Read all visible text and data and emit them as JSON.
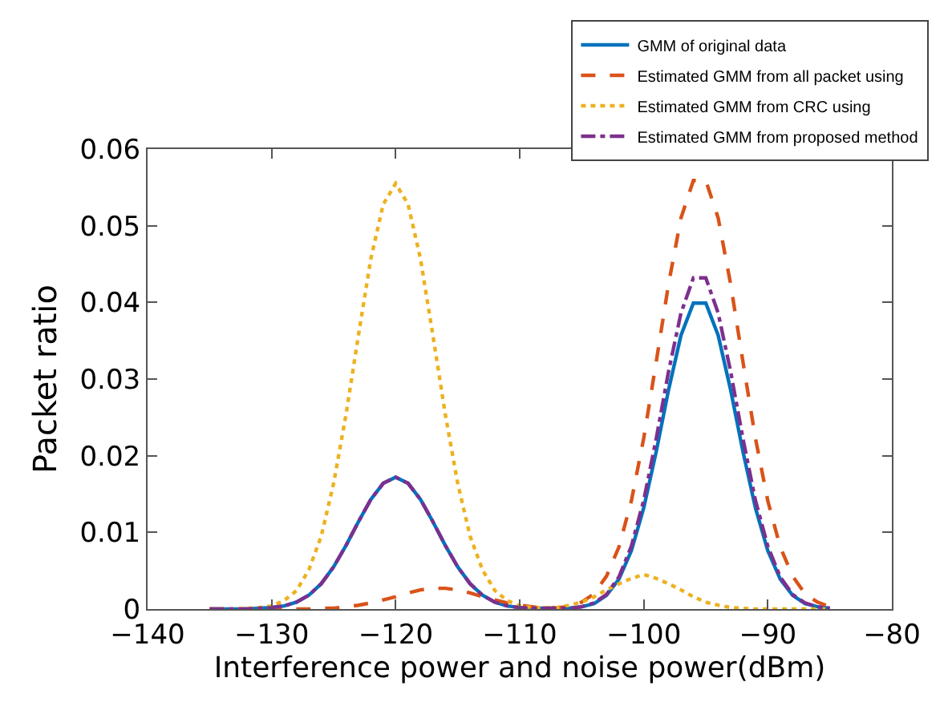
{
  "chart_data": {
    "type": "line",
    "xlabel": "Interference power and noise power(dBm)",
    "ylabel": "Packet ratio",
    "x": [
      -135,
      -134,
      -133,
      -132,
      -131,
      -130,
      -129,
      -128,
      -127,
      -126,
      -125,
      -124,
      -123,
      -122,
      -121,
      -120,
      -119,
      -118,
      -117,
      -116,
      -115,
      -114,
      -113,
      -112,
      -111,
      -110,
      -109,
      -108,
      -107,
      -106,
      -105,
      -104,
      -103,
      -102,
      -101,
      -100,
      -99,
      -98,
      -97,
      -96,
      -95,
      -94,
      -93,
      -92,
      -91,
      -90,
      -89,
      -88,
      -87,
      -86,
      -85
    ],
    "series": [
      {
        "name": "GMM of original data",
        "color": "#0072bd",
        "line_style": "solid",
        "values": [
          0,
          0,
          0,
          0,
          0.0001,
          0.0002,
          0.0004,
          0.0009,
          0.0018,
          0.0033,
          0.0055,
          0.0083,
          0.0114,
          0.0143,
          0.0164,
          0.0172,
          0.0164,
          0.0143,
          0.0114,
          0.0083,
          0.0055,
          0.0033,
          0.0018,
          0.0009,
          0.0004,
          0.0002,
          0.0001,
          0.0001,
          0.0001,
          0.0001,
          0.0003,
          0.0007,
          0.0018,
          0.0039,
          0.0076,
          0.0132,
          0.0205,
          0.0286,
          0.0357,
          0.0399,
          0.0399,
          0.0357,
          0.0286,
          0.0205,
          0.0132,
          0.0076,
          0.0039,
          0.0018,
          0.0007,
          0.0003,
          0.0001
        ]
      },
      {
        "name": "Estimated GMM from all packet using",
        "color": "#d95319",
        "line_style": "dashed",
        "values": [
          0,
          0,
          0,
          0,
          0,
          0,
          0,
          0,
          0,
          0.0001,
          0.0001,
          0.0003,
          0.0005,
          0.0008,
          0.0012,
          0.0016,
          0.0021,
          0.0025,
          0.0027,
          0.0027,
          0.0025,
          0.0021,
          0.0016,
          0.0012,
          0.0008,
          0.0005,
          0.0003,
          0.0001,
          0.0002,
          0.0003,
          0.0009,
          0.002,
          0.0043,
          0.0081,
          0.0141,
          0.0223,
          0.0322,
          0.0424,
          0.051,
          0.0559,
          0.0559,
          0.051,
          0.0424,
          0.0322,
          0.0223,
          0.0141,
          0.0081,
          0.0043,
          0.002,
          0.0009,
          0.0003
        ]
      },
      {
        "name": "Estimated GMM from CRC using",
        "color": "#edb120",
        "line_style": "dotted",
        "values": [
          0,
          0,
          0,
          0.0001,
          0.0002,
          0.0004,
          0.0011,
          0.0024,
          0.0051,
          0.0095,
          0.0164,
          0.0254,
          0.0357,
          0.0457,
          0.0528,
          0.0555,
          0.0528,
          0.0457,
          0.0357,
          0.0254,
          0.0164,
          0.0095,
          0.0051,
          0.0024,
          0.0011,
          0.0004,
          0.0002,
          0.0002,
          0.0002,
          0.0005,
          0.0009,
          0.0016,
          0.0025,
          0.0033,
          0.004,
          0.0045,
          0.004,
          0.0033,
          0.0025,
          0.0016,
          0.0009,
          0.0005,
          0.0002,
          0.0001,
          0,
          0,
          0,
          0,
          0,
          0,
          0
        ]
      },
      {
        "name": "Estimated GMM from proposed method",
        "color": "#7e2f8e",
        "line_style": "dashdot",
        "values": [
          0,
          0,
          0,
          0,
          0.0001,
          0.0002,
          0.0004,
          0.0009,
          0.0018,
          0.0033,
          0.0055,
          0.0083,
          0.0114,
          0.0143,
          0.0164,
          0.0172,
          0.0164,
          0.0143,
          0.0114,
          0.0083,
          0.0055,
          0.0033,
          0.0018,
          0.0009,
          0.0004,
          0.0002,
          0.0001,
          0.0001,
          0.0001,
          0.0001,
          0.0003,
          0.0008,
          0.0019,
          0.0042,
          0.0082,
          0.0142,
          0.0222,
          0.031,
          0.0386,
          0.0432,
          0.0432,
          0.0386,
          0.031,
          0.0222,
          0.0142,
          0.0082,
          0.0042,
          0.0019,
          0.0008,
          0.0003,
          0.0001
        ]
      }
    ],
    "xlim": [
      -140,
      -80
    ],
    "xticks": [
      -140,
      -130,
      -120,
      -110,
      -100,
      -90,
      -80
    ],
    "ylim": [
      0,
      0.06
    ],
    "yticks": [
      0,
      0.01,
      0.02,
      0.03,
      0.04,
      0.05,
      0.06
    ],
    "grid": false,
    "legend": "top right",
    "marker": "none"
  }
}
